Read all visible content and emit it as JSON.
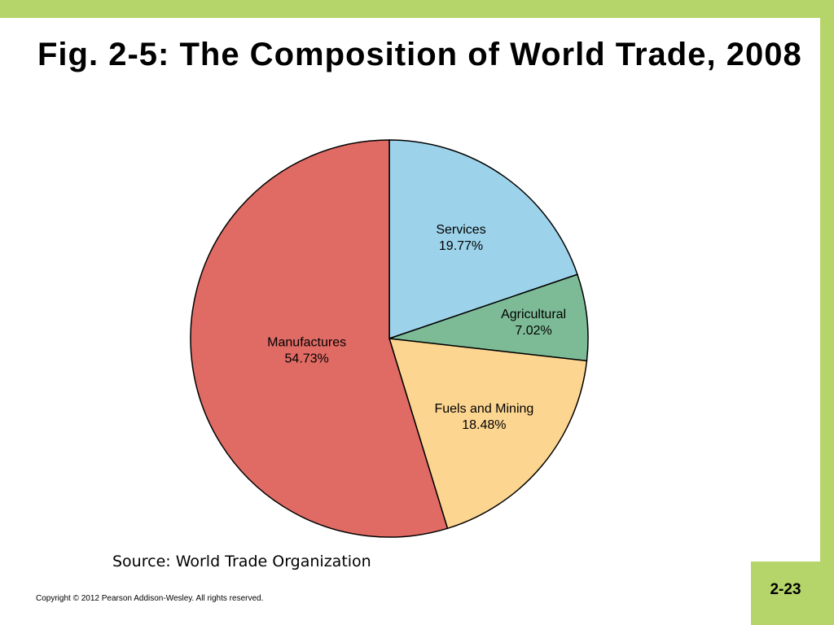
{
  "chart_data": {
    "type": "pie",
    "title": "Fig. 2-5: The Composition of World Trade, 2008",
    "categories": [
      "Services",
      "Agricultural",
      "Fuels and Mining",
      "Manufactures"
    ],
    "values": [
      19.77,
      7.02,
      18.48,
      54.73
    ],
    "value_labels": [
      "19.77%",
      "7.02%",
      "18.48%",
      "54.73%"
    ],
    "colors": [
      "#9dd3ea",
      "#7dbb97",
      "#fcd591",
      "#e06b64"
    ],
    "source": "Source: World Trade Organization"
  },
  "footer": {
    "copyright": "Copyright © 2012 Pearson Addison-Wesley. All rights reserved.",
    "page_number": "2-23"
  }
}
